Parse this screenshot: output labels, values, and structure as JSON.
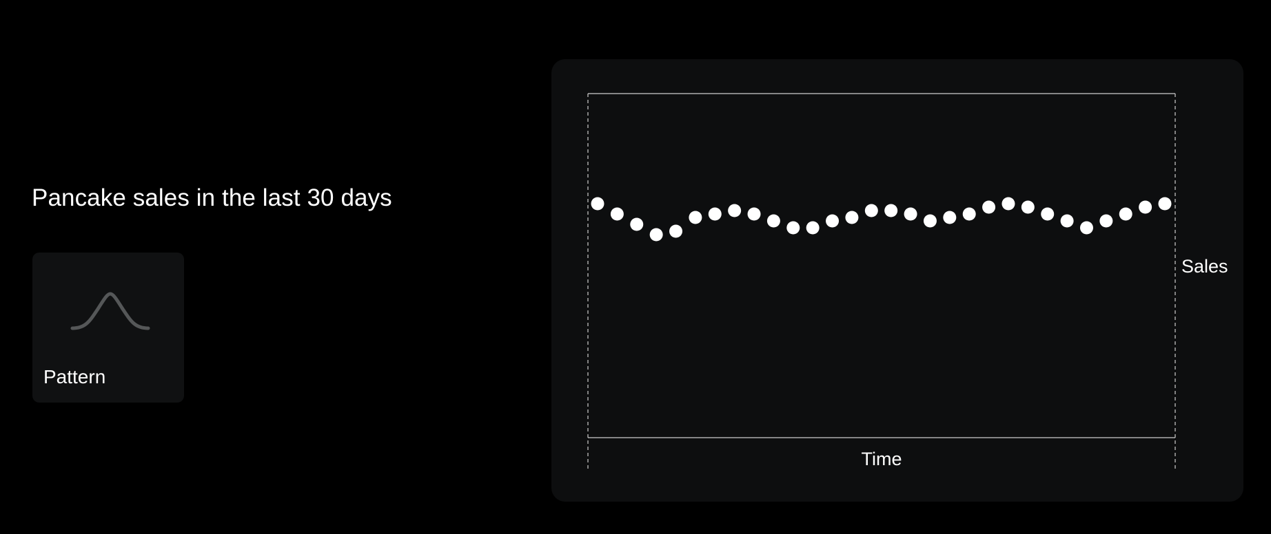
{
  "heading": "Pancake sales in the last 30 days",
  "pattern_card": {
    "label": "Pattern",
    "icon": "bell-curve-icon"
  },
  "colors": {
    "background": "#000000",
    "card": "#0d0e0f",
    "points": "#ffffff",
    "icon": "#555758"
  },
  "chart_data": {
    "type": "scatter",
    "title": "",
    "xlabel": "Time",
    "ylabel": "Sales",
    "y_axis_side": "right",
    "grid": false,
    "x": [
      1,
      2,
      3,
      4,
      5,
      6,
      7,
      8,
      9,
      10,
      11,
      12,
      13,
      14,
      15,
      16,
      17,
      18,
      19,
      20,
      21,
      22,
      23,
      24,
      25,
      26,
      27,
      28,
      29,
      30
    ],
    "y": [
      0.68,
      0.65,
      0.62,
      0.59,
      0.6,
      0.64,
      0.65,
      0.66,
      0.65,
      0.63,
      0.61,
      0.61,
      0.63,
      0.64,
      0.66,
      0.66,
      0.65,
      0.63,
      0.64,
      0.65,
      0.67,
      0.68,
      0.67,
      0.65,
      0.63,
      0.61,
      0.63,
      0.65,
      0.67,
      0.68
    ],
    "xlim": [
      1,
      30
    ],
    "ylim": [
      0,
      1
    ]
  }
}
